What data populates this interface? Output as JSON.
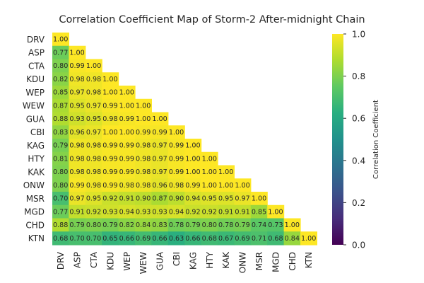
{
  "chart_data": {
    "type": "heatmap",
    "title": "Correlation Coefficient Map of Storm-2 After-midnight Chain",
    "labels": [
      "DRV",
      "ASP",
      "CTA",
      "KDU",
      "WEP",
      "WEW",
      "GUA",
      "CBI",
      "KAG",
      "HTY",
      "KAK",
      "ONW",
      "MSR",
      "MGD",
      "CHD",
      "KTN"
    ],
    "matrix": [
      [
        1.0
      ],
      [
        0.77,
        1.0
      ],
      [
        0.8,
        0.99,
        1.0
      ],
      [
        0.82,
        0.98,
        0.98,
        1.0
      ],
      [
        0.85,
        0.97,
        0.98,
        1.0,
        1.0
      ],
      [
        0.87,
        0.95,
        0.97,
        0.99,
        1.0,
        1.0
      ],
      [
        0.88,
        0.93,
        0.95,
        0.98,
        0.99,
        1.0,
        1.0
      ],
      [
        0.83,
        0.96,
        0.97,
        1.0,
        1.0,
        0.99,
        0.99,
        1.0
      ],
      [
        0.79,
        0.98,
        0.98,
        0.99,
        0.99,
        0.98,
        0.97,
        0.99,
        1.0
      ],
      [
        0.81,
        0.98,
        0.98,
        0.99,
        0.99,
        0.98,
        0.97,
        0.99,
        1.0,
        1.0
      ],
      [
        0.8,
        0.98,
        0.98,
        0.99,
        0.99,
        0.98,
        0.97,
        0.99,
        1.0,
        1.0,
        1.0
      ],
      [
        0.8,
        0.99,
        0.98,
        0.99,
        0.98,
        0.98,
        0.96,
        0.98,
        0.99,
        1.0,
        1.0,
        1.0
      ],
      [
        0.7,
        0.97,
        0.95,
        0.92,
        0.91,
        0.9,
        0.87,
        0.9,
        0.94,
        0.95,
        0.95,
        0.97,
        1.0
      ],
      [
        0.77,
        0.91,
        0.92,
        0.93,
        0.94,
        0.93,
        0.93,
        0.94,
        0.92,
        0.92,
        0.91,
        0.91,
        0.85,
        1.0
      ],
      [
        0.88,
        0.79,
        0.8,
        0.79,
        0.82,
        0.84,
        0.83,
        0.78,
        0.79,
        0.8,
        0.78,
        0.79,
        0.74,
        0.73,
        1.0
      ],
      [
        0.68,
        0.7,
        0.7,
        0.65,
        0.66,
        0.69,
        0.66,
        0.63,
        0.66,
        0.68,
        0.67,
        0.69,
        0.71,
        0.68,
        0.84,
        1.0
      ]
    ],
    "colorbar": {
      "label": "Correlation Coefficient",
      "range": [
        0.0,
        1.0
      ],
      "ticks": [
        "0.0",
        "0.2",
        "0.4",
        "0.6",
        "0.8",
        "1.0"
      ],
      "colormap": "viridis"
    }
  }
}
